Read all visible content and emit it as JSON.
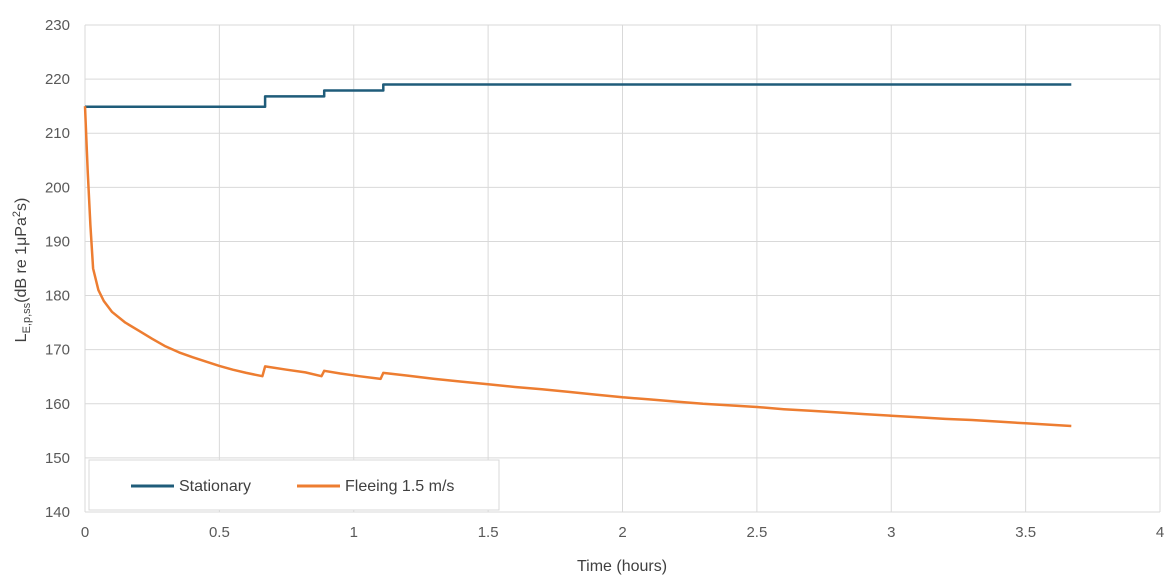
{
  "chart_data": {
    "type": "line",
    "xlabel": "Time (hours)",
    "ylabel": {
      "main": "L",
      "subscript": "E,p,ss",
      "rest_prefix": "(dB re 1μPa",
      "superscript": "2",
      "rest_suffix": "s)"
    },
    "xlim": [
      0,
      4
    ],
    "ylim": [
      140,
      230
    ],
    "x_ticks": [
      0,
      0.5,
      1,
      1.5,
      2,
      2.5,
      3,
      3.5,
      4
    ],
    "y_ticks": [
      140,
      150,
      160,
      170,
      180,
      190,
      200,
      210,
      220,
      230
    ],
    "grid": true,
    "legend_position": "bottom-left",
    "series": [
      {
        "name": "Stationary",
        "color": "#1f5c7a",
        "step": true,
        "points": [
          [
            0,
            214.9
          ],
          [
            0.67,
            214.9
          ],
          [
            0.67,
            216.8
          ],
          [
            0.89,
            216.8
          ],
          [
            0.89,
            217.9
          ],
          [
            1.11,
            217.9
          ],
          [
            1.11,
            219.0
          ],
          [
            3.67,
            219.0
          ]
        ]
      },
      {
        "name": "Fleeing 1.5 m/s",
        "color": "#ed7d31",
        "step": false,
        "points": [
          [
            0,
            215.0
          ],
          [
            0.01,
            203.0
          ],
          [
            0.02,
            193.0
          ],
          [
            0.03,
            185.0
          ],
          [
            0.05,
            181.0
          ],
          [
            0.07,
            179.0
          ],
          [
            0.1,
            177.0
          ],
          [
            0.15,
            175.0
          ],
          [
            0.2,
            173.5
          ],
          [
            0.25,
            172.0
          ],
          [
            0.3,
            170.6
          ],
          [
            0.35,
            169.5
          ],
          [
            0.4,
            168.6
          ],
          [
            0.45,
            167.8
          ],
          [
            0.5,
            167.0
          ],
          [
            0.55,
            166.3
          ],
          [
            0.6,
            165.7
          ],
          [
            0.66,
            165.1
          ],
          [
            0.67,
            166.9
          ],
          [
            0.75,
            166.3
          ],
          [
            0.82,
            165.8
          ],
          [
            0.88,
            165.1
          ],
          [
            0.89,
            166.1
          ],
          [
            0.95,
            165.6
          ],
          [
            1.02,
            165.1
          ],
          [
            1.1,
            164.6
          ],
          [
            1.11,
            165.7
          ],
          [
            1.2,
            165.2
          ],
          [
            1.3,
            164.6
          ],
          [
            1.4,
            164.1
          ],
          [
            1.5,
            163.6
          ],
          [
            1.6,
            163.1
          ],
          [
            1.7,
            162.7
          ],
          [
            1.8,
            162.2
          ],
          [
            1.9,
            161.7
          ],
          [
            2.0,
            161.2
          ],
          [
            2.1,
            160.8
          ],
          [
            2.2,
            160.4
          ],
          [
            2.3,
            160.0
          ],
          [
            2.4,
            159.7
          ],
          [
            2.5,
            159.4
          ],
          [
            2.6,
            159.0
          ],
          [
            2.7,
            158.7
          ],
          [
            2.8,
            158.4
          ],
          [
            2.9,
            158.1
          ],
          [
            3.0,
            157.8
          ],
          [
            3.1,
            157.5
          ],
          [
            3.2,
            157.2
          ],
          [
            3.3,
            157.0
          ],
          [
            3.4,
            156.7
          ],
          [
            3.5,
            156.4
          ],
          [
            3.6,
            156.1
          ],
          [
            3.67,
            155.9
          ]
        ]
      }
    ]
  }
}
